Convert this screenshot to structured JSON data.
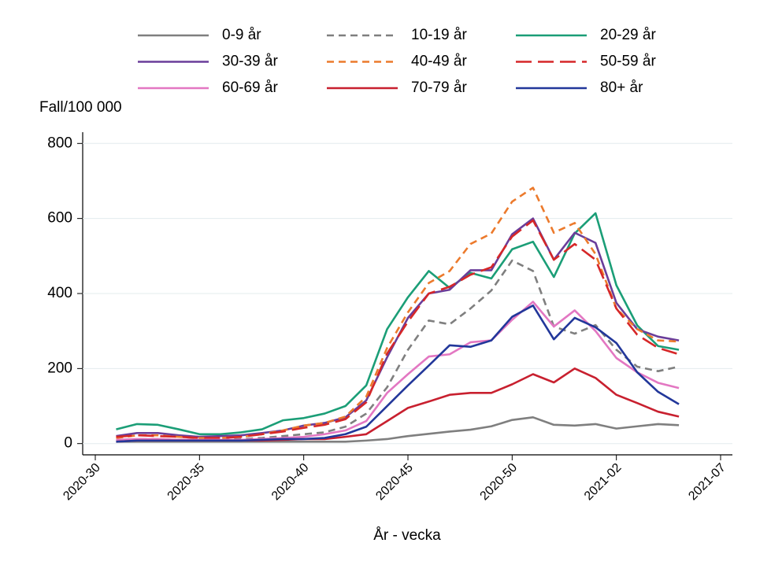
{
  "chart_data": {
    "type": "line",
    "y_label": "Fall/100 000",
    "x_label": "År - vecka",
    "x": [
      "2020-31",
      "2020-32",
      "2020-33",
      "2020-34",
      "2020-35",
      "2020-36",
      "2020-37",
      "2020-38",
      "2020-39",
      "2020-40",
      "2020-41",
      "2020-42",
      "2020-43",
      "2020-44",
      "2020-45",
      "2020-46",
      "2020-47",
      "2020-48",
      "2020-49",
      "2020-50",
      "2020-51",
      "2020-52",
      "2020-53",
      "2021-01",
      "2021-02",
      "2021-03",
      "2021-04",
      "2021-05"
    ],
    "xlim": [
      "2020-30",
      "2021-07"
    ],
    "xticks": [
      "2020-30",
      "2020-35",
      "2020-40",
      "2020-45",
      "2020-50",
      "2021-02",
      "2021-07"
    ],
    "ylim": [
      -30,
      830
    ],
    "yticks": [
      0,
      200,
      400,
      600,
      800
    ],
    "grid": true,
    "series": [
      {
        "name": "0-9 år",
        "color": "#7f7f7f",
        "line_style": "solid",
        "values": [
          5,
          5,
          5,
          5,
          5,
          5,
          5,
          5,
          5,
          5,
          5,
          5,
          8,
          12,
          20,
          26,
          32,
          37,
          46,
          63,
          70,
          50,
          48,
          52,
          40,
          46,
          52,
          49
        ]
      },
      {
        "name": "10-19 år",
        "color": "#7f7f7f",
        "line_style": "dash",
        "values": [
          8,
          12,
          12,
          10,
          10,
          10,
          12,
          15,
          20,
          25,
          30,
          45,
          80,
          150,
          250,
          328,
          318,
          360,
          408,
          488,
          460,
          312,
          293,
          316,
          250,
          205,
          193,
          205
        ]
      },
      {
        "name": "20-29 år",
        "color": "#1b9e77",
        "line_style": "solid",
        "values": [
          38,
          52,
          50,
          38,
          25,
          25,
          30,
          38,
          62,
          68,
          80,
          100,
          155,
          305,
          390,
          460,
          415,
          455,
          440,
          518,
          538,
          444,
          560,
          614,
          422,
          315,
          260,
          250
        ]
      },
      {
        "name": "30-39 år",
        "color": "#6a3d9a",
        "line_style": "solid",
        "values": [
          20,
          28,
          28,
          22,
          18,
          20,
          22,
          28,
          35,
          48,
          55,
          70,
          115,
          230,
          335,
          400,
          410,
          462,
          462,
          558,
          600,
          490,
          562,
          535,
          375,
          305,
          285,
          275
        ]
      },
      {
        "name": "40-49 år",
        "color": "#ec7a2c",
        "line_style": "dash",
        "values": [
          15,
          22,
          22,
          18,
          15,
          15,
          18,
          25,
          35,
          48,
          55,
          72,
          125,
          255,
          350,
          428,
          460,
          532,
          560,
          645,
          682,
          562,
          588,
          505,
          360,
          305,
          275,
          272
        ]
      },
      {
        "name": "50-59 år",
        "color": "#d62728",
        "line_style": "longdash",
        "values": [
          18,
          22,
          20,
          18,
          15,
          15,
          18,
          25,
          32,
          42,
          50,
          65,
          110,
          240,
          325,
          400,
          418,
          450,
          470,
          552,
          595,
          490,
          532,
          490,
          360,
          290,
          255,
          238
        ]
      },
      {
        "name": "60-69 år",
        "color": "#e377c2",
        "line_style": "solid",
        "values": [
          10,
          12,
          12,
          10,
          10,
          10,
          10,
          12,
          15,
          18,
          25,
          35,
          60,
          135,
          185,
          232,
          238,
          270,
          275,
          330,
          378,
          312,
          355,
          300,
          228,
          190,
          162,
          148
        ]
      },
      {
        "name": "70-79 år",
        "color": "#c8202f",
        "line_style": "solid",
        "values": [
          5,
          8,
          8,
          8,
          8,
          8,
          8,
          8,
          10,
          12,
          12,
          18,
          25,
          60,
          95,
          112,
          130,
          135,
          135,
          158,
          185,
          163,
          200,
          175,
          130,
          108,
          85,
          72
        ]
      },
      {
        "name": "80+ år",
        "color": "#22379a",
        "line_style": "solid",
        "values": [
          5,
          8,
          8,
          8,
          8,
          8,
          8,
          10,
          12,
          12,
          15,
          25,
          45,
          100,
          155,
          208,
          262,
          258,
          275,
          338,
          368,
          278,
          335,
          310,
          268,
          190,
          138,
          105
        ]
      }
    ]
  }
}
